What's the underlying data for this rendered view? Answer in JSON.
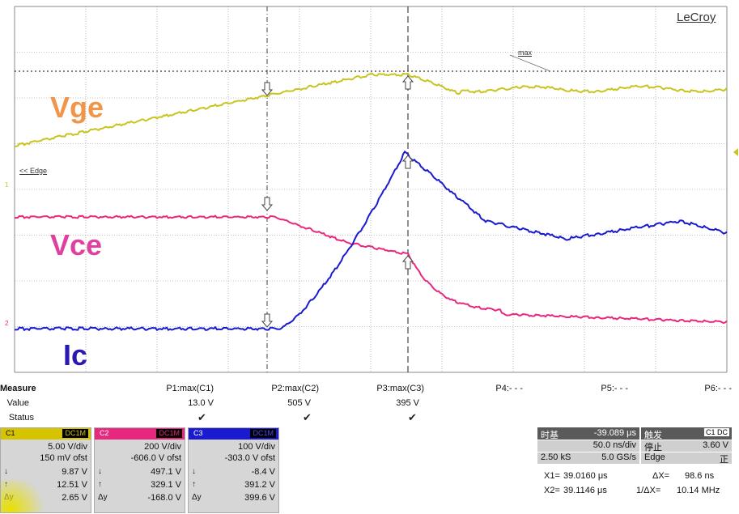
{
  "brand": "LeCroy",
  "traces": {
    "vge_label": "Vge",
    "vce_label": "Vce",
    "ic_label": "Ic",
    "vge_color": "#c8c420",
    "vce_color": "#e8287e",
    "ic_color": "#1a1ad0",
    "vge_text_color": "#f0954a",
    "vce_text_color": "#e040a0",
    "ic_text_color": "#2a1ab0"
  },
  "scope_labels": {
    "max_label": "max",
    "edge_label": "<< Edge"
  },
  "measure": {
    "title": "Measure",
    "value_label": "Value",
    "status_label": "Status",
    "columns": [
      {
        "name": "P1:max(C1)",
        "value": "13.0 V",
        "status": "✔"
      },
      {
        "name": "P2:max(C2)",
        "value": "505 V",
        "status": "✔"
      },
      {
        "name": "P3:max(C3)",
        "value": "395 V",
        "status": "✔"
      },
      {
        "name": "P4:- - -",
        "value": "",
        "status": ""
      },
      {
        "name": "P5:- - -",
        "value": "",
        "status": ""
      },
      {
        "name": "P6:- - -",
        "value": "",
        "status": ""
      }
    ]
  },
  "channels": [
    {
      "tag": "C1",
      "coupling": "DC1M",
      "color": "#d6c400",
      "vdiv": "5.00 V/div",
      "ofst": "150 mV ofst",
      "r1_sym": "↓",
      "r1": "9.87 V",
      "r2_sym": "↑",
      "r2": "12.51 V",
      "r3_sym": "Δy",
      "r3": "2.65 V"
    },
    {
      "tag": "C2",
      "coupling": "DC1M",
      "color": "#e8287e",
      "vdiv": "200 V/div",
      "ofst": "-606.0 V ofst",
      "r1_sym": "↓",
      "r1": "497.1 V",
      "r2_sym": "↑",
      "r2": "329.1 V",
      "r3_sym": "Δy",
      "r3": "-168.0 V"
    },
    {
      "tag": "C3",
      "coupling": "DC1M",
      "color": "#1a1ad0",
      "vdiv": "100 V/div",
      "ofst": "-303.0 V ofst",
      "r1_sym": "↓",
      "r1": "-8.4 V",
      "r2_sym": "↑",
      "r2": "391.2 V",
      "r3_sym": "Δy",
      "r3": "399.6 V"
    }
  ],
  "timebase": {
    "title": "时基",
    "delay": "-39.089 μs",
    "tdiv": "50.0 ns/div",
    "samples": "2.50 kS",
    "rate": "5.0 GS/s"
  },
  "trigger": {
    "title": "触发",
    "tag": "C1 DC",
    "mode": "停止",
    "level": "3.60 V",
    "type": "Edge",
    "slope": "正"
  },
  "cursors": {
    "x1_label": "X1=",
    "x1": "39.0160 μs",
    "x2_label": "X2=",
    "x2": "39.1146 μs",
    "dx_label": "ΔX=",
    "dx": "98.6 ns",
    "inv_label": "1/ΔX=",
    "inv": "10.14 MHz"
  }
}
